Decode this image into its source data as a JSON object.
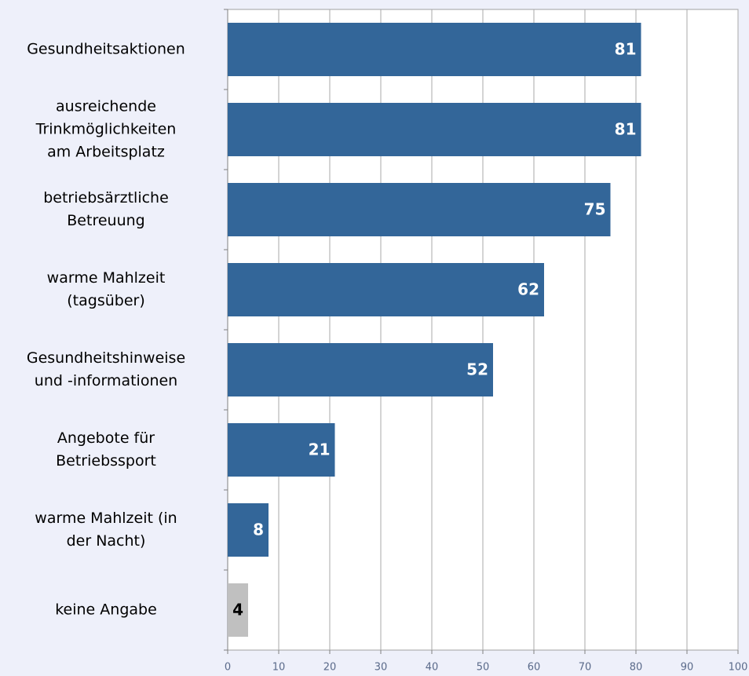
{
  "chart_data": {
    "type": "barh",
    "categories": [
      "Gesundheitsaktionen",
      "ausreichende\nTrinkmöglichkeiten\nam Arbeitsplatz",
      "betriebsärztliche\nBetreuung",
      "warme Mahlzeit\n(tagsüber)",
      "Gesundheitshinweise\nund -informationen",
      "Angebote für\nBetriebssport",
      "warme Mahlzeit (in\nder Nacht)",
      "keine Angabe"
    ],
    "values": [
      81,
      81,
      75,
      62,
      52,
      21,
      8,
      4
    ],
    "colors": [
      "#336699",
      "#336699",
      "#336699",
      "#336699",
      "#336699",
      "#336699",
      "#336699",
      "#c0c0c0"
    ],
    "label_colors": [
      "#ffffff",
      "#ffffff",
      "#ffffff",
      "#ffffff",
      "#ffffff",
      "#ffffff",
      "#ffffff",
      "#000000"
    ],
    "xlim": [
      0,
      100
    ],
    "xticks": [
      0,
      10,
      20,
      30,
      40,
      50,
      60,
      70,
      80,
      90,
      100
    ],
    "grid": true
  }
}
